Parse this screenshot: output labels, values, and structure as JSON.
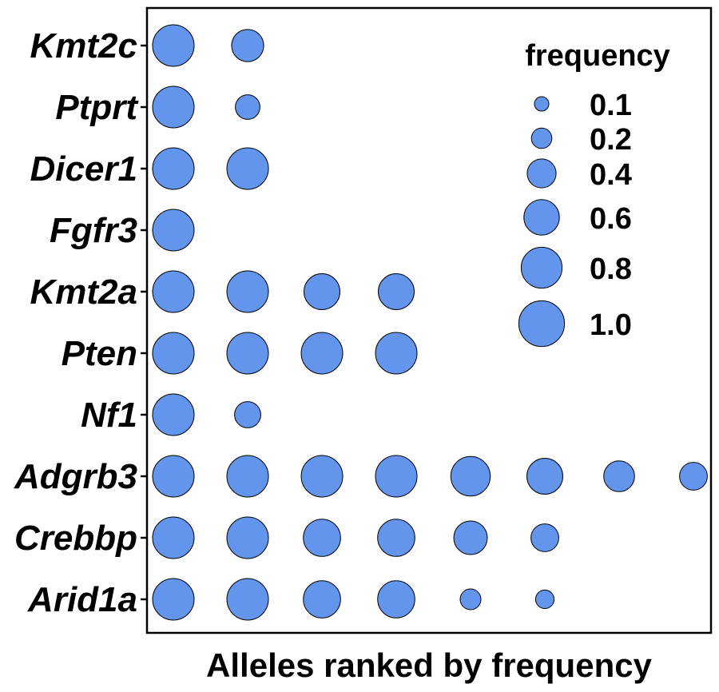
{
  "chart_data": {
    "type": "scatter",
    "title": "",
    "xlabel": "Alleles ranked by frequency",
    "ylabel": "",
    "x_ranks": [
      1,
      2,
      3,
      4,
      5,
      6,
      7,
      8
    ],
    "genes": [
      "Kmt2c",
      "Ptprt",
      "Dicer1",
      "Fgfr3",
      "Kmt2a",
      "Pten",
      "Nf1",
      "Adgrb3",
      "Crebbp",
      "Arid1a"
    ],
    "series": [
      {
        "gene": "Kmt2c",
        "values": [
          1.0,
          0.6
        ]
      },
      {
        "gene": "Ptprt",
        "values": [
          1.0,
          0.35
        ]
      },
      {
        "gene": "Dicer1",
        "values": [
          1.0,
          1.0
        ]
      },
      {
        "gene": "Fgfr3",
        "values": [
          1.0
        ]
      },
      {
        "gene": "Kmt2a",
        "values": [
          1.0,
          1.0,
          0.75,
          0.75
        ]
      },
      {
        "gene": "Pten",
        "values": [
          1.0,
          1.0,
          1.0,
          1.0
        ]
      },
      {
        "gene": "Nf1",
        "values": [
          1.0,
          0.4
        ]
      },
      {
        "gene": "Adgrb3",
        "values": [
          1.0,
          1.0,
          1.0,
          1.0,
          0.9,
          0.75,
          0.55,
          0.45
        ]
      },
      {
        "gene": "Crebbp",
        "values": [
          1.0,
          1.0,
          0.8,
          0.8,
          0.65,
          0.45
        ]
      },
      {
        "gene": "Arid1a",
        "values": [
          1.0,
          1.0,
          0.8,
          0.8,
          0.25,
          0.2
        ]
      }
    ],
    "legend": {
      "title": "frequency",
      "position": "top-right",
      "entries": [
        {
          "label": "0.1",
          "value": 0.1
        },
        {
          "label": "0.2",
          "value": 0.2
        },
        {
          "label": "0.4",
          "value": 0.4
        },
        {
          "label": "0.6",
          "value": 0.6
        },
        {
          "label": "0.8",
          "value": 0.8
        },
        {
          "label": "1.0",
          "value": 1.0
        }
      ]
    },
    "grid": false,
    "colors": {
      "point_fill": "#6495ED",
      "point_stroke": "#000000"
    }
  }
}
